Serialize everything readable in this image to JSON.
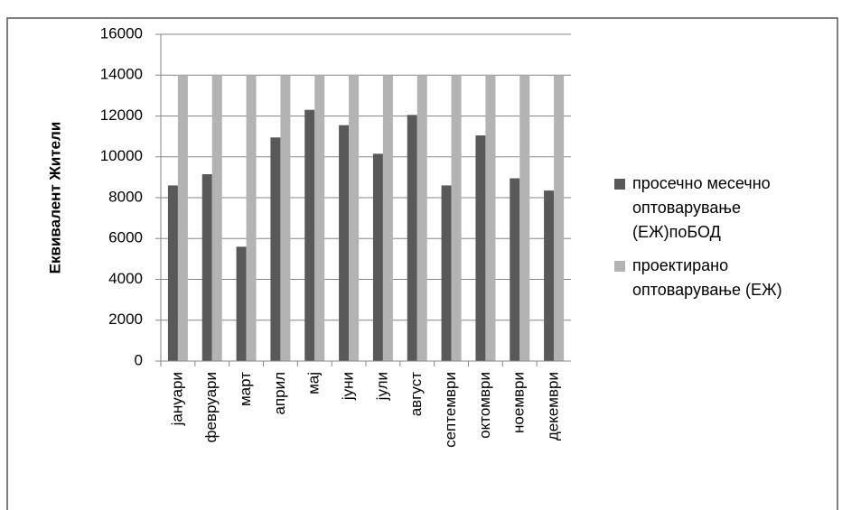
{
  "chart_data": {
    "type": "bar",
    "y_label": "Еквивалент Жители",
    "categories": [
      "јануари",
      "февруари",
      "март",
      "април",
      "мај",
      "јуни",
      "јули",
      "август",
      "септември",
      "октомври",
      "ноември",
      "декември"
    ],
    "series": [
      {
        "name": "просечно месечно оптоварување (ЕЖ)поБОД",
        "color": "#595959",
        "values": [
          8600,
          9150,
          5600,
          10950,
          12300,
          11550,
          10150,
          12050,
          8600,
          11050,
          8950,
          8350
        ]
      },
      {
        "name": "проектирано оптоварување (ЕЖ)",
        "color": "#b3b3b3",
        "values": [
          14000,
          14000,
          14000,
          14000,
          14000,
          14000,
          14000,
          14000,
          14000,
          14000,
          14000,
          14000
        ]
      }
    ],
    "ylim": [
      0,
      16000
    ],
    "yticks": [
      0,
      2000,
      4000,
      6000,
      8000,
      10000,
      12000,
      14000,
      16000
    ],
    "grid": true,
    "legend": "right"
  }
}
